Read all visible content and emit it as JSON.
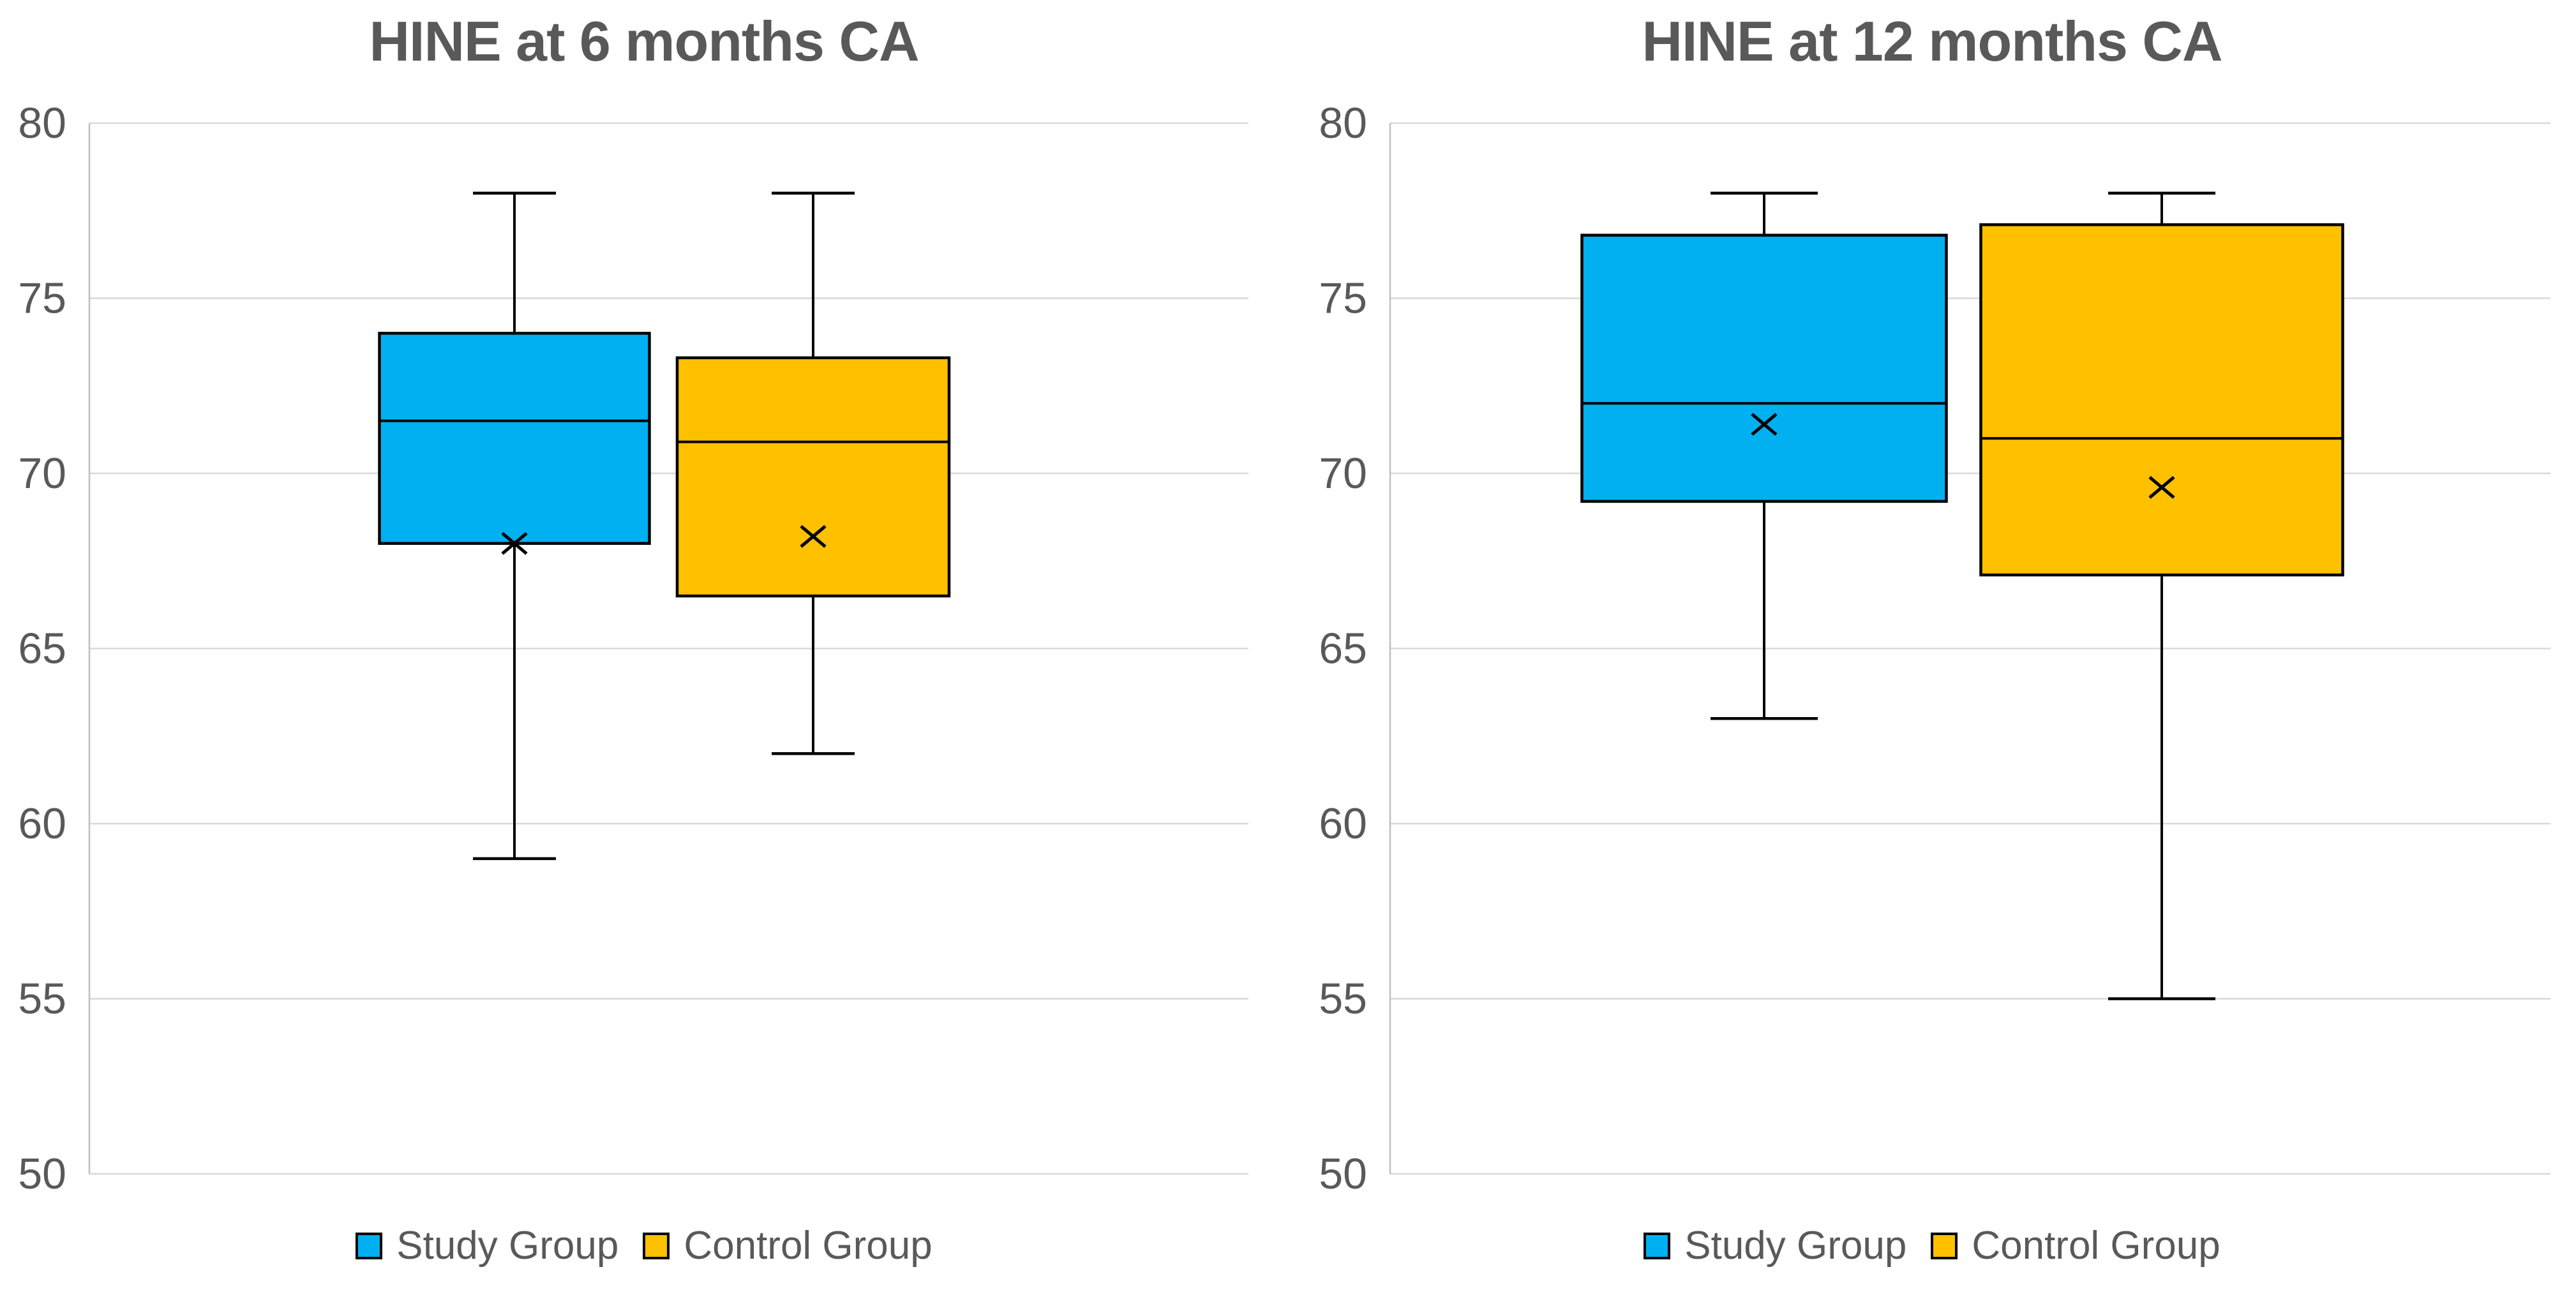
{
  "page": {
    "background": "#FFFFFF"
  },
  "colors": {
    "study": "#00B0F0",
    "control": "#FFC000",
    "box_border": "#000000",
    "whisker": "#000000",
    "mean_marker": "#000000",
    "text": "#595959",
    "gridline": "#D9D9D9",
    "axis_line": "#BFBFBF"
  },
  "chart_data": [
    {
      "type": "boxplot",
      "title": "HINE at 6 months CA",
      "xlabel": "",
      "ylabel": "",
      "ylim": [
        50,
        80
      ],
      "yticks": [
        50,
        55,
        60,
        65,
        70,
        75,
        80
      ],
      "grid": true,
      "legend_position": "bottom",
      "mean_marker": "x",
      "series": [
        {
          "name": "Study Group",
          "color_key": "study",
          "min": 59,
          "q1": 68,
          "median": 71.5,
          "q3": 74,
          "max": 78,
          "mean": 68
        },
        {
          "name": "Control Group",
          "color_key": "control",
          "min": 62,
          "q1": 66.5,
          "median": 70.9,
          "q3": 73.3,
          "max": 78,
          "mean": 68.2
        }
      ]
    },
    {
      "type": "boxplot",
      "title": "HINE at 12 months CA",
      "xlabel": "",
      "ylabel": "",
      "ylim": [
        50,
        80
      ],
      "yticks": [
        50,
        55,
        60,
        65,
        70,
        75,
        80
      ],
      "grid": true,
      "legend_position": "bottom",
      "mean_marker": "x",
      "series": [
        {
          "name": "Study Group",
          "color_key": "study",
          "min": 63,
          "q1": 69.2,
          "median": 72,
          "q3": 76.8,
          "max": 78,
          "mean": 71.4
        },
        {
          "name": "Control Group",
          "color_key": "control",
          "min": 55,
          "q1": 67.1,
          "median": 71,
          "q3": 77.1,
          "max": 78,
          "mean": 69.6
        }
      ]
    }
  ]
}
